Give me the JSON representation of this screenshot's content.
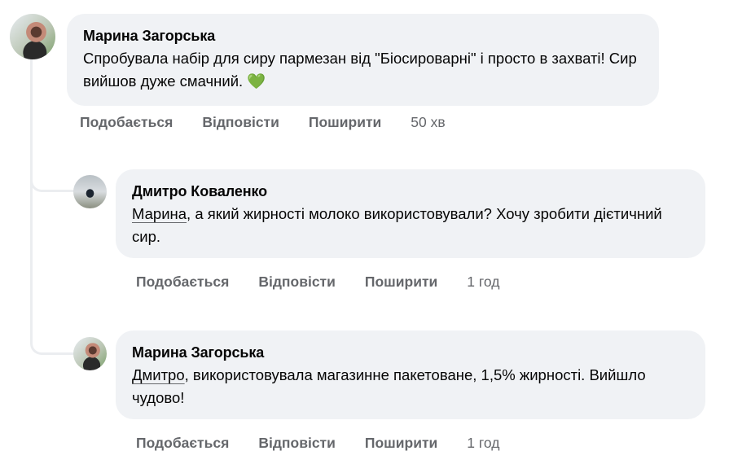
{
  "comments": [
    {
      "author": "Марина Загорська",
      "text": "Спробувала набір для сиру пармезан від \"Біосироварні\" і просто в захваті! Сир вийшов дуже смачний. 💚",
      "actions": {
        "like": "Подобається",
        "reply": "Відповісти",
        "share": "Поширити",
        "time": "50 хв"
      }
    },
    {
      "author": "Дмитро Коваленко",
      "mention": "Марина",
      "text": ", а який жирності молоко використовували? Хочу зробити дієтичний сир.",
      "actions": {
        "like": "Подобається",
        "reply": "Відповісти",
        "share": "Поширити",
        "time": "1 год"
      }
    },
    {
      "author": "Марина Загорська",
      "mention": "Дмитро",
      "text": ", використовувала магазинне пакетоване, 1,5% жирності. Вийшло чудово!",
      "actions": {
        "like": "Подобається",
        "reply": "Відповісти",
        "share": "Поширити",
        "time": "1 год"
      }
    }
  ]
}
